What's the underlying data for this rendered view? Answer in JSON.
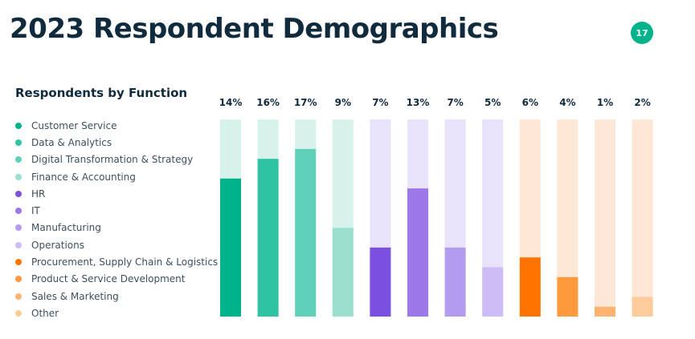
{
  "page": {
    "title": "2023 Respondent Demographics",
    "page_number": "17",
    "badge_color": "#00b38a"
  },
  "chart_data": {
    "type": "bar",
    "title": "Respondents by Function",
    "xlabel": "",
    "ylabel": "",
    "ylim": [
      0,
      20
    ],
    "categories": [
      "Customer Service",
      "Data & Analytics",
      "Digital Transformation & Strategy",
      "Finance & Accounting",
      "HR",
      "IT",
      "Manufacturing",
      "Operations",
      "Procurement, Supply Chain & Logistics",
      "Product & Service Development",
      "Sales & Marketing",
      "Other"
    ],
    "values": [
      14,
      16,
      17,
      9,
      7,
      13,
      7,
      5,
      6,
      4,
      1,
      2
    ],
    "value_labels": [
      "14%",
      "16%",
      "17%",
      "9%",
      "7%",
      "13%",
      "7%",
      "5%",
      "6%",
      "4%",
      "1%",
      "2%"
    ],
    "colors": [
      "#00b38a",
      "#2ec4a3",
      "#5fd1b8",
      "#9be0cf",
      "#7b4fe0",
      "#9b77ea",
      "#b39cf0",
      "#cdbcf6",
      "#ff7300",
      "#ff9a3c",
      "#ffb370",
      "#ffcb9a"
    ],
    "track_colors": [
      "#d6f2ea",
      "#d6f2ea",
      "#d6f2ea",
      "#d6f2ea",
      "#e8e2fb",
      "#e8e2fb",
      "#e8e2fb",
      "#e8e2fb",
      "#fde7d6",
      "#fde7d6",
      "#fde7d6",
      "#fde7d6"
    ],
    "legend_position": "left"
  }
}
